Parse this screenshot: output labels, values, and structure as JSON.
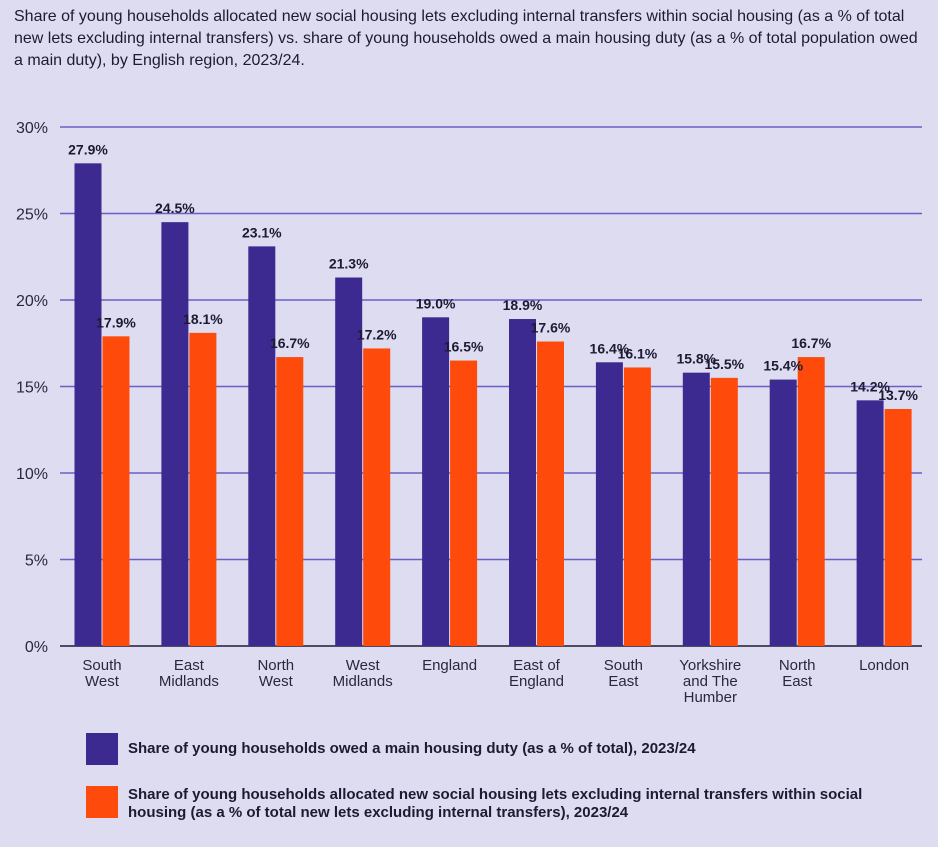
{
  "chart_data": {
    "type": "bar",
    "title": "Share of young households allocated new social housing lets excluding internal transfers within social housing (as a % of total new lets excluding internal transfers) vs. share of young households owed a main housing duty (as a % of total population owed a main duty), by English region, 2023/24.",
    "categories": [
      [
        "South",
        "West"
      ],
      [
        "East",
        "Midlands"
      ],
      [
        "North",
        "West"
      ],
      [
        "West",
        "Midlands"
      ],
      [
        "England"
      ],
      [
        "East of",
        "England"
      ],
      [
        "South",
        "East"
      ],
      [
        "Yorkshire",
        "and The",
        "Humber"
      ],
      [
        "North",
        "East"
      ],
      [
        "London"
      ]
    ],
    "series": [
      {
        "name": "Share of young households owed a main housing duty (as a % of total), 2023/24",
        "color": "#3d2a91",
        "values": [
          27.9,
          24.5,
          23.1,
          21.3,
          19.0,
          18.9,
          16.4,
          15.8,
          15.4,
          14.2
        ],
        "labels": [
          "27.9%",
          "24.5%",
          "23.1%",
          "21.3%",
          "19.0%",
          "18.9%",
          "16.4%",
          "15.8%",
          "15.4%",
          "14.2%"
        ]
      },
      {
        "name": "Share of young households allocated new social housing lets excluding internal transfers within social housing (as a % of total new lets excluding internal transfers), 2023/24",
        "color": "#fe4a0a",
        "values": [
          17.9,
          18.1,
          16.7,
          17.2,
          16.5,
          17.6,
          16.1,
          15.5,
          16.7,
          13.7
        ],
        "labels": [
          "17.9%",
          "18.1%",
          "16.7%",
          "17.2%",
          "16.5%",
          "17.6%",
          "16.1%",
          "15.5%",
          "16.7%",
          "13.7%"
        ]
      }
    ],
    "ylim": [
      0,
      30
    ],
    "yticks": [
      0,
      5,
      10,
      15,
      20,
      25,
      30
    ],
    "ytick_labels": [
      "0%",
      "5%",
      "10%",
      "15%",
      "20%",
      "25%",
      "30%"
    ],
    "grid": true,
    "legend_position": "bottom"
  }
}
